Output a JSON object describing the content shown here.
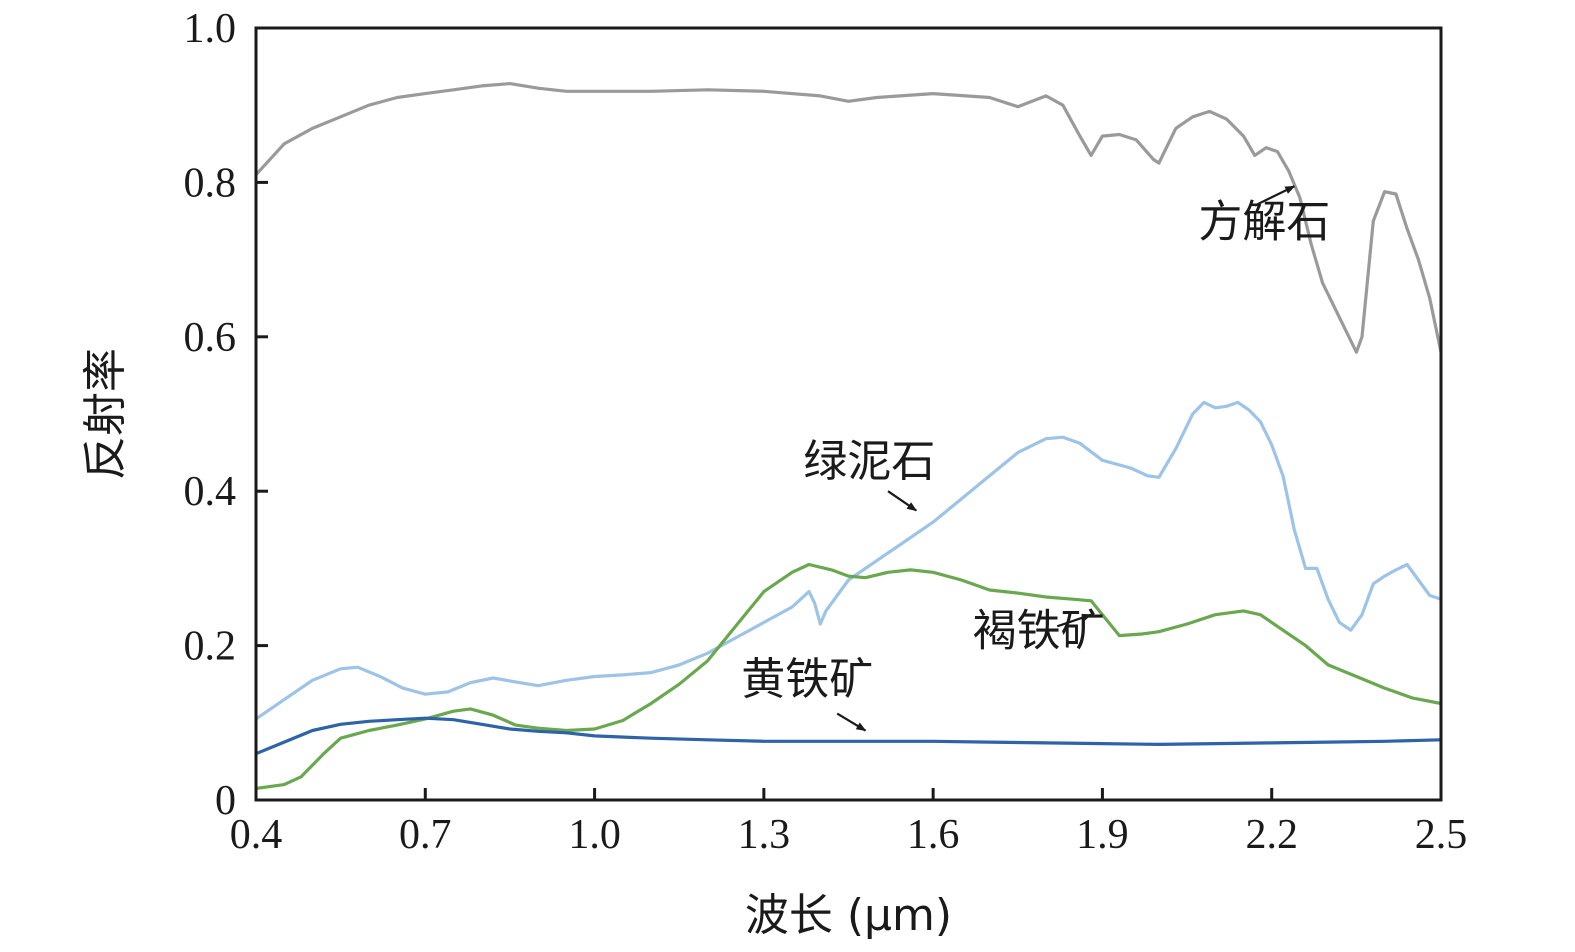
{
  "chart_data": {
    "type": "line",
    "title": "",
    "xlabel": "波长 (μm)",
    "ylabel": "反射率",
    "xlim": [
      0.4,
      2.5
    ],
    "ylim": [
      0,
      1.0
    ],
    "xticks": [
      {
        "v": 0.4,
        "label": "0.4"
      },
      {
        "v": 0.7,
        "label": "0.7"
      },
      {
        "v": 1.0,
        "label": "1.0"
      },
      {
        "v": 1.3,
        "label": "1.3"
      },
      {
        "v": 1.6,
        "label": "1.6"
      },
      {
        "v": 1.9,
        "label": "1.9"
      },
      {
        "v": 2.2,
        "label": "2.2"
      },
      {
        "v": 2.5,
        "label": "2.5"
      }
    ],
    "yticks": [
      {
        "v": 0,
        "label": "0"
      },
      {
        "v": 0.2,
        "label": "0.2"
      },
      {
        "v": 0.4,
        "label": "0.4"
      },
      {
        "v": 0.6,
        "label": "0.6"
      },
      {
        "v": 0.8,
        "label": "0.8"
      },
      {
        "v": 1.0,
        "label": "1.0"
      }
    ],
    "grid": false,
    "legend": "none",
    "series": [
      {
        "name": "方解石",
        "color": "#9a9a9a",
        "label_at": [
          2.07,
          0.73
        ],
        "arrow_from": [
          2.17,
          0.77
        ],
        "arrow_to": [
          2.24,
          0.795
        ],
        "points": [
          [
            0.4,
            0.81
          ],
          [
            0.45,
            0.85
          ],
          [
            0.5,
            0.87
          ],
          [
            0.55,
            0.885
          ],
          [
            0.6,
            0.9
          ],
          [
            0.65,
            0.91
          ],
          [
            0.7,
            0.915
          ],
          [
            0.75,
            0.92
          ],
          [
            0.8,
            0.925
          ],
          [
            0.85,
            0.928
          ],
          [
            0.9,
            0.922
          ],
          [
            0.95,
            0.918
          ],
          [
            1.0,
            0.918
          ],
          [
            1.1,
            0.918
          ],
          [
            1.2,
            0.92
          ],
          [
            1.3,
            0.918
          ],
          [
            1.4,
            0.912
          ],
          [
            1.45,
            0.905
          ],
          [
            1.5,
            0.91
          ],
          [
            1.6,
            0.915
          ],
          [
            1.7,
            0.91
          ],
          [
            1.75,
            0.898
          ],
          [
            1.8,
            0.912
          ],
          [
            1.83,
            0.9
          ],
          [
            1.86,
            0.86
          ],
          [
            1.88,
            0.835
          ],
          [
            1.9,
            0.86
          ],
          [
            1.93,
            0.862
          ],
          [
            1.96,
            0.855
          ],
          [
            1.99,
            0.83
          ],
          [
            2.0,
            0.825
          ],
          [
            2.03,
            0.87
          ],
          [
            2.06,
            0.885
          ],
          [
            2.09,
            0.892
          ],
          [
            2.12,
            0.882
          ],
          [
            2.15,
            0.86
          ],
          [
            2.17,
            0.835
          ],
          [
            2.19,
            0.845
          ],
          [
            2.21,
            0.84
          ],
          [
            2.23,
            0.815
          ],
          [
            2.25,
            0.78
          ],
          [
            2.27,
            0.72
          ],
          [
            2.29,
            0.67
          ],
          [
            2.31,
            0.64
          ],
          [
            2.33,
            0.61
          ],
          [
            2.35,
            0.58
          ],
          [
            2.36,
            0.6
          ],
          [
            2.38,
            0.75
          ],
          [
            2.4,
            0.788
          ],
          [
            2.42,
            0.785
          ],
          [
            2.44,
            0.74
          ],
          [
            2.46,
            0.7
          ],
          [
            2.48,
            0.65
          ],
          [
            2.5,
            0.58
          ]
        ]
      },
      {
        "name": "绿泥石",
        "color": "#9dc3e6",
        "label_at": [
          1.37,
          0.42
        ],
        "arrow_from": [
          1.52,
          0.4
        ],
        "arrow_to": [
          1.57,
          0.375
        ],
        "points": [
          [
            0.4,
            0.105
          ],
          [
            0.45,
            0.13
          ],
          [
            0.5,
            0.155
          ],
          [
            0.55,
            0.17
          ],
          [
            0.58,
            0.172
          ],
          [
            0.62,
            0.16
          ],
          [
            0.66,
            0.145
          ],
          [
            0.7,
            0.137
          ],
          [
            0.74,
            0.14
          ],
          [
            0.78,
            0.152
          ],
          [
            0.82,
            0.158
          ],
          [
            0.86,
            0.153
          ],
          [
            0.9,
            0.148
          ],
          [
            0.95,
            0.155
          ],
          [
            1.0,
            0.16
          ],
          [
            1.05,
            0.162
          ],
          [
            1.1,
            0.165
          ],
          [
            1.15,
            0.175
          ],
          [
            1.2,
            0.19
          ],
          [
            1.25,
            0.21
          ],
          [
            1.3,
            0.23
          ],
          [
            1.35,
            0.25
          ],
          [
            1.38,
            0.27
          ],
          [
            1.39,
            0.255
          ],
          [
            1.4,
            0.228
          ],
          [
            1.41,
            0.245
          ],
          [
            1.45,
            0.285
          ],
          [
            1.5,
            0.31
          ],
          [
            1.55,
            0.335
          ],
          [
            1.6,
            0.36
          ],
          [
            1.65,
            0.39
          ],
          [
            1.7,
            0.42
          ],
          [
            1.75,
            0.45
          ],
          [
            1.8,
            0.468
          ],
          [
            1.83,
            0.47
          ],
          [
            1.86,
            0.462
          ],
          [
            1.9,
            0.44
          ],
          [
            1.95,
            0.43
          ],
          [
            1.98,
            0.42
          ],
          [
            2.0,
            0.418
          ],
          [
            2.03,
            0.455
          ],
          [
            2.06,
            0.5
          ],
          [
            2.08,
            0.515
          ],
          [
            2.1,
            0.508
          ],
          [
            2.12,
            0.51
          ],
          [
            2.14,
            0.515
          ],
          [
            2.16,
            0.505
          ],
          [
            2.18,
            0.49
          ],
          [
            2.2,
            0.46
          ],
          [
            2.22,
            0.42
          ],
          [
            2.24,
            0.35
          ],
          [
            2.26,
            0.3
          ],
          [
            2.28,
            0.3
          ],
          [
            2.3,
            0.26
          ],
          [
            2.32,
            0.23
          ],
          [
            2.34,
            0.22
          ],
          [
            2.36,
            0.24
          ],
          [
            2.38,
            0.28
          ],
          [
            2.4,
            0.29
          ],
          [
            2.42,
            0.298
          ],
          [
            2.44,
            0.305
          ],
          [
            2.46,
            0.285
          ],
          [
            2.48,
            0.265
          ],
          [
            2.5,
            0.26
          ]
        ]
      },
      {
        "name": "褐铁矿",
        "color": "#6aa84f",
        "label_at": [
          1.67,
          0.2
        ],
        "arrow_from": [
          1.82,
          0.225
        ],
        "arrow_to": [
          1.88,
          0.24
        ],
        "points": [
          [
            0.4,
            0.015
          ],
          [
            0.45,
            0.02
          ],
          [
            0.48,
            0.03
          ],
          [
            0.52,
            0.06
          ],
          [
            0.55,
            0.08
          ],
          [
            0.6,
            0.09
          ],
          [
            0.65,
            0.097
          ],
          [
            0.7,
            0.105
          ],
          [
            0.75,
            0.115
          ],
          [
            0.78,
            0.118
          ],
          [
            0.82,
            0.11
          ],
          [
            0.86,
            0.097
          ],
          [
            0.9,
            0.093
          ],
          [
            0.95,
            0.09
          ],
          [
            1.0,
            0.092
          ],
          [
            1.05,
            0.103
          ],
          [
            1.1,
            0.125
          ],
          [
            1.15,
            0.15
          ],
          [
            1.2,
            0.18
          ],
          [
            1.25,
            0.225
          ],
          [
            1.3,
            0.27
          ],
          [
            1.35,
            0.295
          ],
          [
            1.38,
            0.305
          ],
          [
            1.42,
            0.298
          ],
          [
            1.45,
            0.29
          ],
          [
            1.48,
            0.288
          ],
          [
            1.52,
            0.295
          ],
          [
            1.56,
            0.298
          ],
          [
            1.6,
            0.295
          ],
          [
            1.65,
            0.285
          ],
          [
            1.7,
            0.272
          ],
          [
            1.75,
            0.268
          ],
          [
            1.8,
            0.263
          ],
          [
            1.85,
            0.26
          ],
          [
            1.88,
            0.258
          ],
          [
            1.9,
            0.24
          ],
          [
            1.93,
            0.213
          ],
          [
            1.97,
            0.215
          ],
          [
            2.0,
            0.218
          ],
          [
            2.05,
            0.228
          ],
          [
            2.1,
            0.24
          ],
          [
            2.15,
            0.245
          ],
          [
            2.18,
            0.24
          ],
          [
            2.22,
            0.22
          ],
          [
            2.26,
            0.2
          ],
          [
            2.3,
            0.175
          ],
          [
            2.35,
            0.16
          ],
          [
            2.4,
            0.145
          ],
          [
            2.45,
            0.132
          ],
          [
            2.5,
            0.125
          ]
        ]
      },
      {
        "name": "黄铁矿",
        "color": "#2e63a8",
        "label_at": [
          1.26,
          0.137
        ],
        "arrow_from": [
          1.43,
          0.112
        ],
        "arrow_to": [
          1.48,
          0.09
        ],
        "points": [
          [
            0.4,
            0.06
          ],
          [
            0.45,
            0.075
          ],
          [
            0.5,
            0.09
          ],
          [
            0.55,
            0.098
          ],
          [
            0.6,
            0.102
          ],
          [
            0.65,
            0.104
          ],
          [
            0.7,
            0.106
          ],
          [
            0.75,
            0.104
          ],
          [
            0.8,
            0.098
          ],
          [
            0.85,
            0.092
          ],
          [
            0.9,
            0.089
          ],
          [
            0.95,
            0.087
          ],
          [
            1.0,
            0.083
          ],
          [
            1.1,
            0.08
          ],
          [
            1.2,
            0.078
          ],
          [
            1.3,
            0.076
          ],
          [
            1.4,
            0.076
          ],
          [
            1.5,
            0.076
          ],
          [
            1.6,
            0.076
          ],
          [
            1.7,
            0.075
          ],
          [
            1.8,
            0.074
          ],
          [
            1.9,
            0.073
          ],
          [
            2.0,
            0.072
          ],
          [
            2.1,
            0.073
          ],
          [
            2.2,
            0.074
          ],
          [
            2.3,
            0.075
          ],
          [
            2.4,
            0.076
          ],
          [
            2.5,
            0.078
          ]
        ]
      }
    ]
  }
}
